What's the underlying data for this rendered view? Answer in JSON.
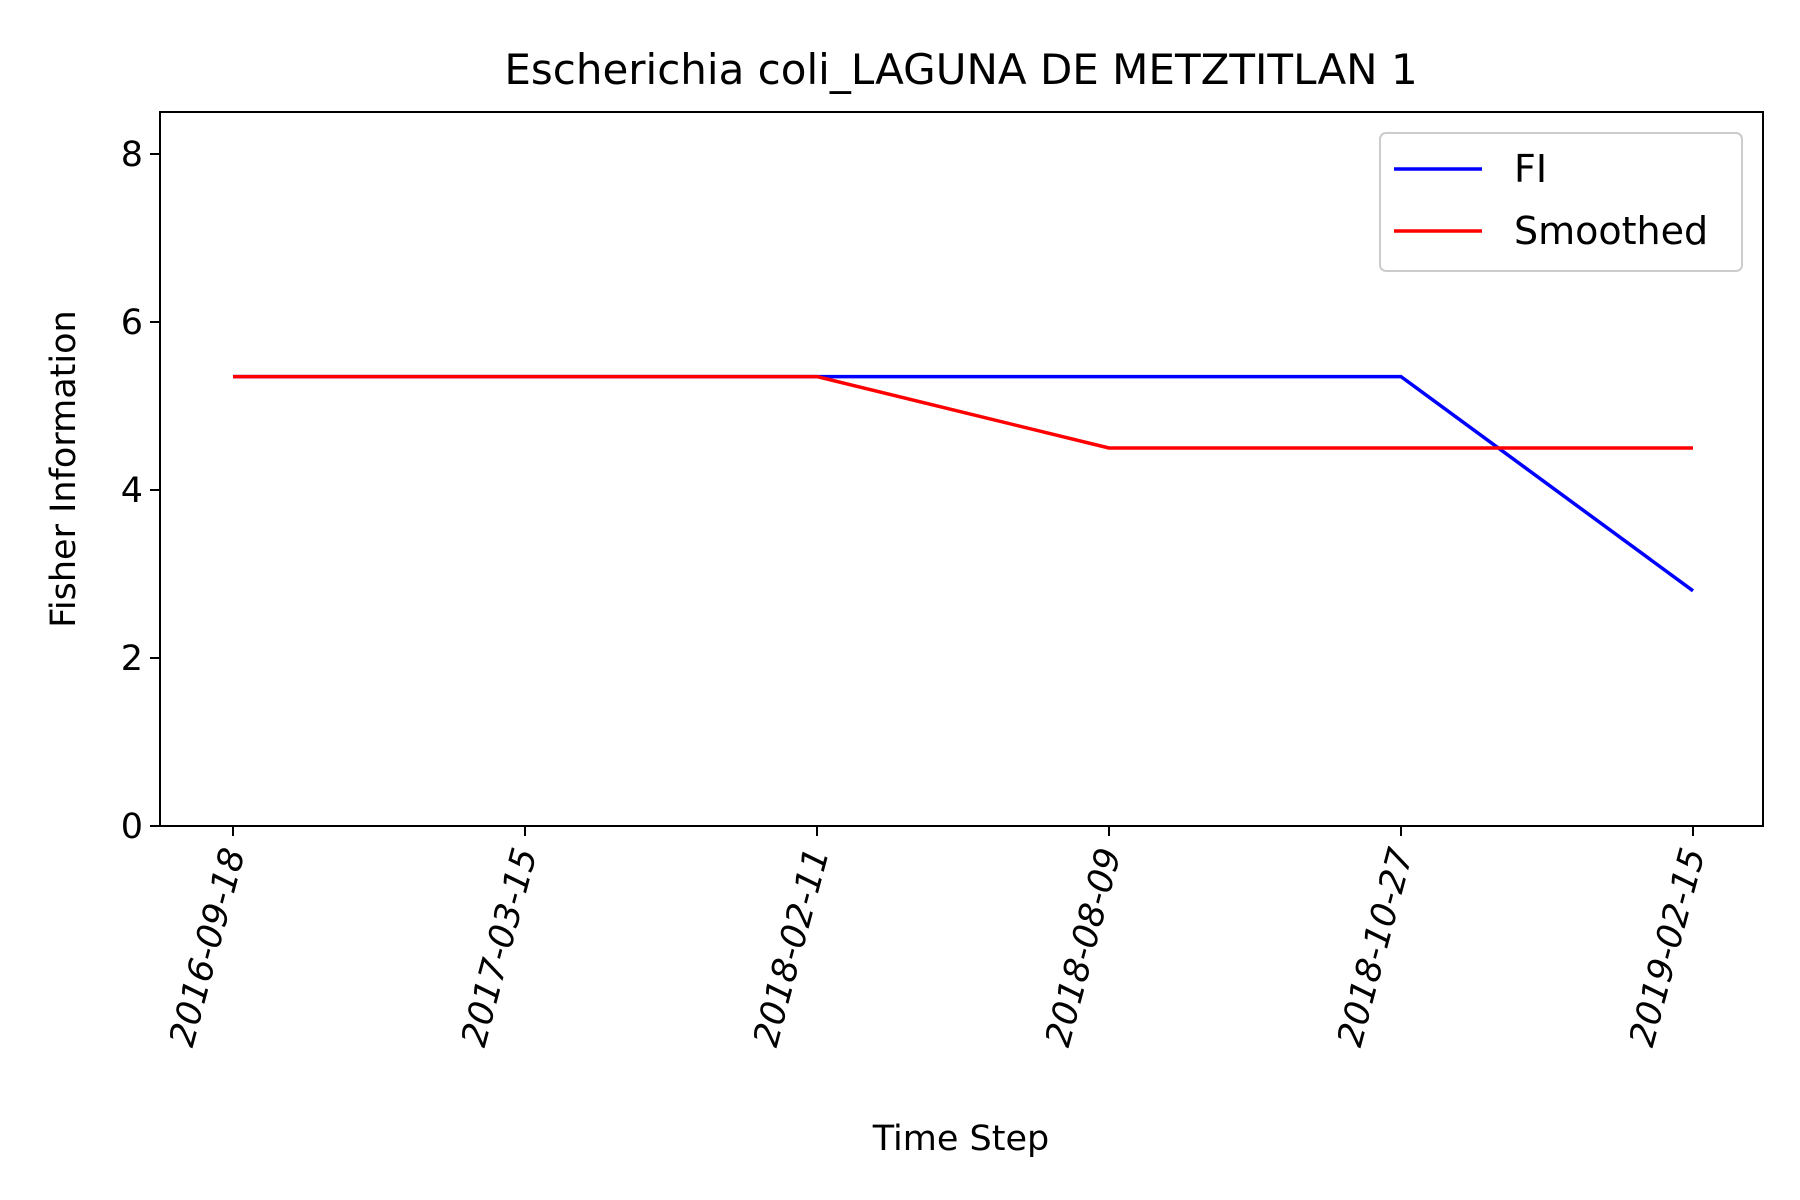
{
  "chart_data": {
    "type": "line",
    "title": "Escherichia coli_LAGUNA DE METZTITLAN 1",
    "xlabel": "Time Step",
    "ylabel": "Fisher Information",
    "x": [
      "2016-09-18",
      "2017-03-15",
      "2018-02-11",
      "2018-08-09",
      "2018-10-27",
      "2019-02-15"
    ],
    "ylim": [
      0,
      8.5
    ],
    "yticks": [
      "0",
      "2",
      "4",
      "6",
      "8"
    ],
    "grid": false,
    "legend_position": "upper right",
    "series": [
      {
        "name": "FI",
        "color": "#0000ff",
        "values": [
          5.35,
          5.35,
          5.35,
          5.35,
          5.35,
          2.8
        ]
      },
      {
        "name": "Smoothed",
        "color": "#ff0000",
        "values": [
          5.35,
          5.35,
          5.35,
          4.5,
          4.5,
          4.5
        ]
      }
    ]
  }
}
